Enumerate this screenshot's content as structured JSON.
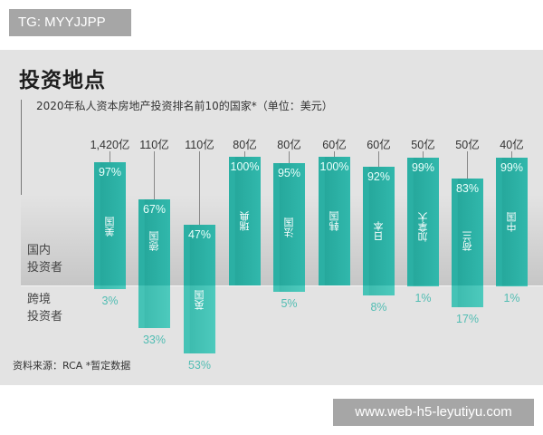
{
  "watermarks": {
    "top_left": "TG: MYYJJPP",
    "bottom_right": "www.web-h5-leyutiyu.com"
  },
  "chart": {
    "title": "投资地点",
    "subtitle": "2020年私人资本房地产投资排名前10的国家*（单位：美元）",
    "row_labels": {
      "domestic": "国内\n投资者",
      "domestic_l1": "国内",
      "domestic_l2": "投资者",
      "cross_l1": "跨境",
      "cross_l2": "投资者"
    },
    "source": "资料来源：RCA *暂定数据",
    "colors": {
      "domestic": "#2bb0a4",
      "cross_border": "#45c3b6",
      "cross_label": "#52bdb3",
      "background": "#e3e3e3"
    },
    "countries": [
      {
        "name": "美国",
        "amount": "1,420亿",
        "domestic": "97%",
        "cross": "3%"
      },
      {
        "name": "德国",
        "amount": "110亿",
        "domestic": "67%",
        "cross": "33%"
      },
      {
        "name": "英国",
        "amount": "110亿",
        "domestic": "47%",
        "cross": "53%"
      },
      {
        "name": "瑞典",
        "amount": "80亿",
        "domestic": "100%",
        "cross": ""
      },
      {
        "name": "法国",
        "amount": "80亿",
        "domestic": "95%",
        "cross": "5%"
      },
      {
        "name": "韩国",
        "amount": "60亿",
        "domestic": "100%",
        "cross": ""
      },
      {
        "name": "日本",
        "amount": "60亿",
        "domestic": "92%",
        "cross": "8%"
      },
      {
        "name": "加拿大",
        "amount": "50亿",
        "domestic": "99%",
        "cross": "1%"
      },
      {
        "name": "荷兰",
        "amount": "50亿",
        "domestic": "83%",
        "cross": "17%"
      },
      {
        "name": "中国",
        "amount": "40亿",
        "domestic": "99%",
        "cross": "1%"
      }
    ]
  },
  "chart_data": {
    "type": "bar",
    "title": "投资地点",
    "subtitle": "2020年私人资本房地产投资排名前10的国家*（单位：美元）",
    "categories": [
      "美国",
      "德国",
      "英国",
      "瑞典",
      "法国",
      "韩国",
      "日本",
      "加拿大",
      "荷兰",
      "中国"
    ],
    "total_investment_label": [
      "1,420亿",
      "110亿",
      "110亿",
      "80亿",
      "80亿",
      "60亿",
      "60亿",
      "50亿",
      "50亿",
      "40亿"
    ],
    "total_investment_usd_100m": [
      1420,
      110,
      110,
      80,
      80,
      60,
      60,
      50,
      50,
      40
    ],
    "series": [
      {
        "name": "国内投资者",
        "values": [
          97,
          67,
          47,
          100,
          95,
          100,
          92,
          99,
          83,
          99
        ]
      },
      {
        "name": "跨境投资者",
        "values": [
          3,
          33,
          53,
          0,
          5,
          0,
          8,
          1,
          17,
          1
        ]
      }
    ],
    "unit": "%",
    "layout": "diverging stacked bar (domestic above baseline, cross-border below)",
    "source": "资料来源：RCA *暂定数据",
    "xlabel": "",
    "ylabel": "",
    "ylim": [
      -60,
      100
    ]
  }
}
